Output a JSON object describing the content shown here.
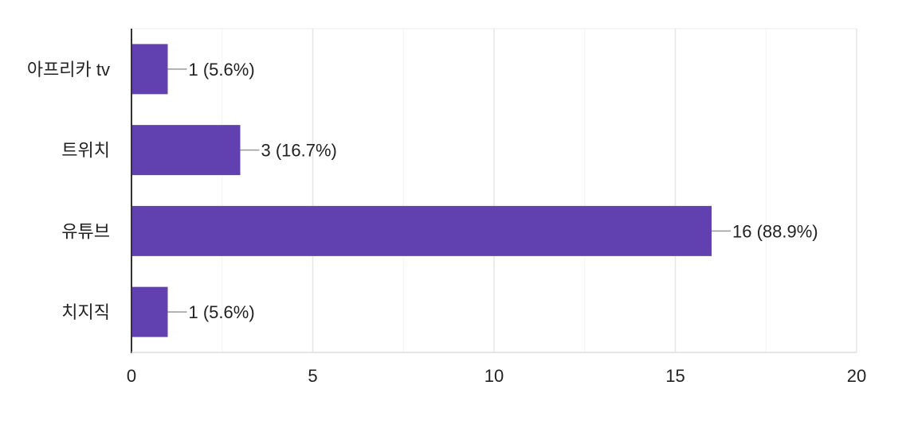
{
  "chart_data": {
    "type": "bar",
    "orientation": "horizontal",
    "categories": [
      "아프리카 tv",
      "트위치",
      "유튜브",
      "치지직"
    ],
    "values": [
      1,
      3,
      16,
      1
    ],
    "data_labels": [
      "1 (5.6%)",
      "3 (16.7%)",
      "16 (88.9%)",
      "1 (5.6%)"
    ],
    "xlim": [
      0,
      20
    ],
    "x_ticks": [
      0,
      5,
      10,
      15,
      20
    ],
    "x_tick_labels": [
      "0",
      "5",
      "10",
      "15",
      "20"
    ],
    "minor_gridlines": true,
    "grid": true,
    "bar_color": "#6140b0",
    "title": "",
    "xlabel": "",
    "ylabel": ""
  }
}
